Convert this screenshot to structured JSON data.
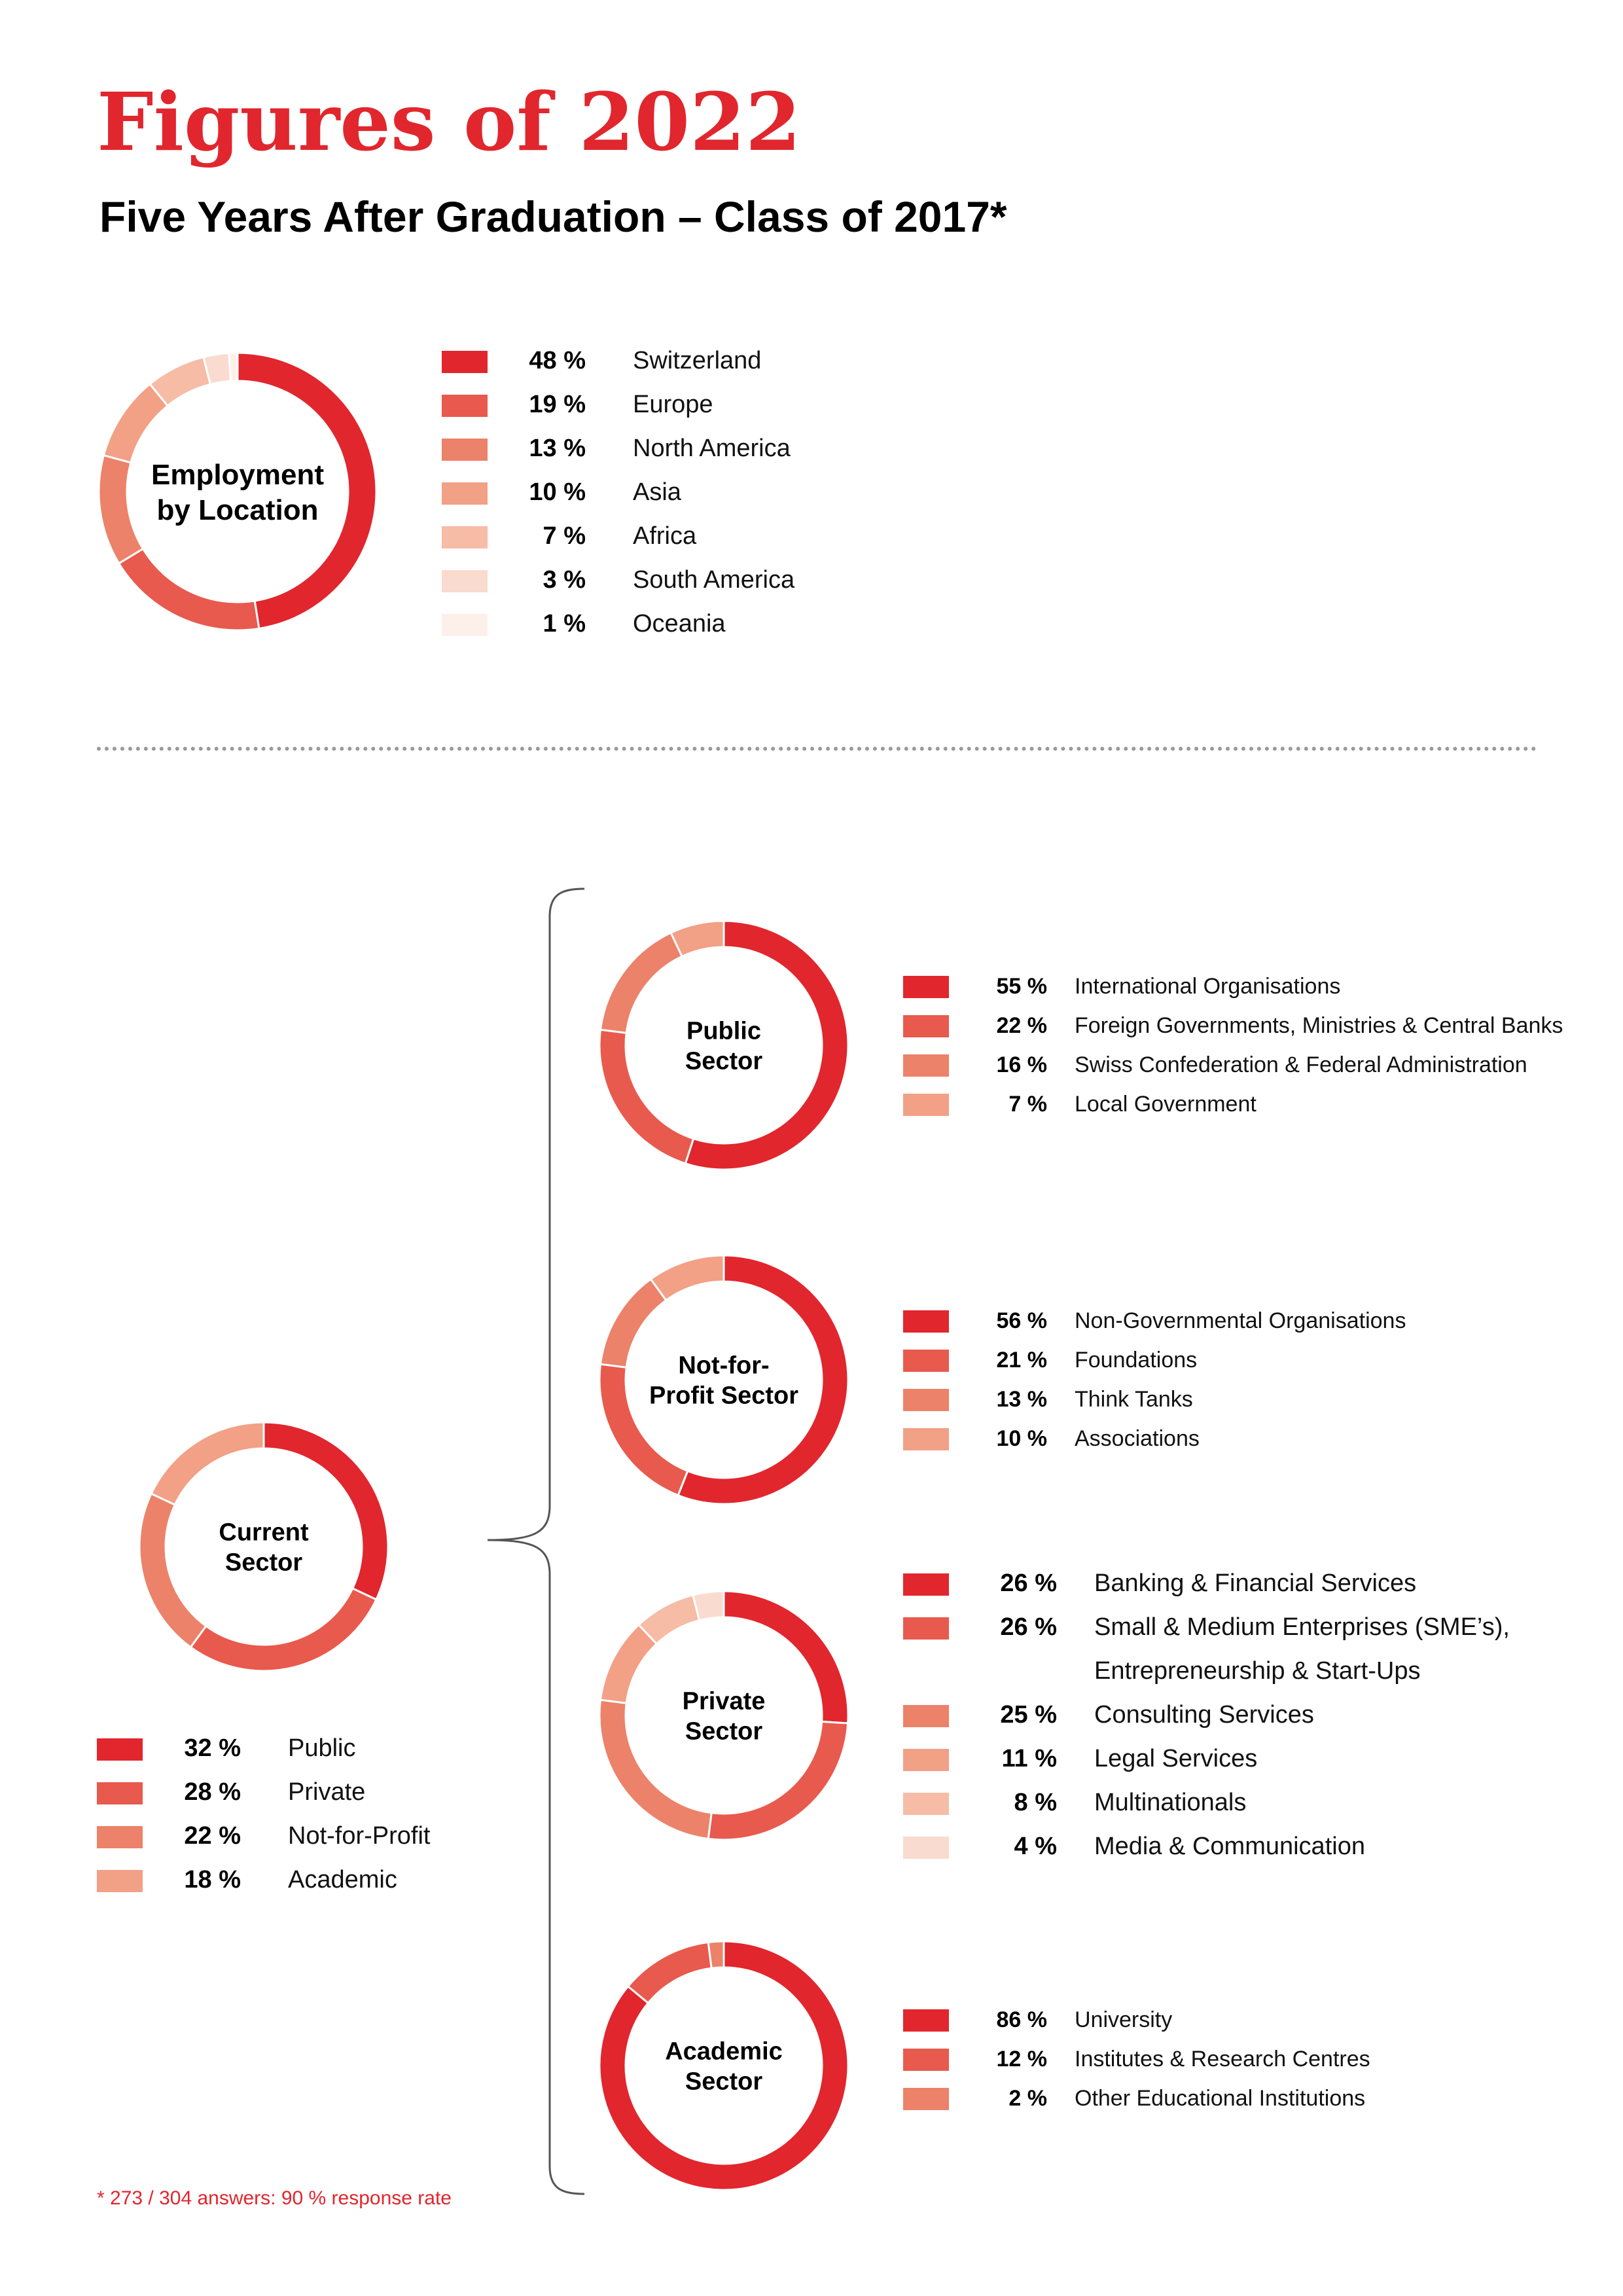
{
  "header": {
    "title": "Figures of 2022",
    "subtitle": "Five Years After Graduation – Class of 2017*"
  },
  "colors": {
    "accent": "#e1262d",
    "palette": [
      "#e1262d",
      "#e85a4d",
      "#ec8269",
      "#f2a086",
      "#f6bca6",
      "#fadbcf",
      "#fdf0eb"
    ]
  },
  "footnote": "* 273 / 304 answers: 90 % response rate",
  "chart_data": [
    {
      "id": "location",
      "type": "pie",
      "title": "Employment by Location",
      "center_lines": [
        "Employment",
        "by Location"
      ],
      "categories": [
        "Switzerland",
        "Europe",
        "North America",
        "Asia",
        "Africa",
        "South America",
        "Oceania"
      ],
      "values": [
        48,
        19,
        13,
        10,
        7,
        3,
        1
      ],
      "labels": [
        "48 %",
        "19 %",
        "13 %",
        "10 %",
        "7 %",
        "3 %",
        "1 %"
      ]
    },
    {
      "id": "current",
      "type": "pie",
      "title": "Current Sector",
      "center_lines": [
        "Current",
        "Sector"
      ],
      "categories": [
        "Public",
        "Private",
        "Not-for-Profit",
        "Academic"
      ],
      "values": [
        32,
        28,
        22,
        18
      ],
      "labels": [
        "32 %",
        "28 %",
        "22 %",
        "18 %"
      ]
    },
    {
      "id": "public",
      "type": "pie",
      "title": "Public Sector",
      "center_lines": [
        "Public",
        "Sector"
      ],
      "categories": [
        "International Organisations",
        "Foreign Governments, Ministries & Central Banks",
        "Swiss Confederation & Federal Administration",
        "Local Government"
      ],
      "values": [
        55,
        22,
        16,
        7
      ],
      "labels": [
        "55 %",
        "22 %",
        "16 %",
        "7 %"
      ]
    },
    {
      "id": "nonprofit",
      "type": "pie",
      "title": "Not-for-Profit Sector",
      "center_lines": [
        "Not-for-",
        "Profit Sector"
      ],
      "categories": [
        "Non-Governmental Organisations",
        "Foundations",
        "Think Tanks",
        "Associations"
      ],
      "values": [
        56,
        21,
        13,
        10
      ],
      "labels": [
        "56 %",
        "21 %",
        "13 %",
        "10 %"
      ]
    },
    {
      "id": "private",
      "type": "pie",
      "title": "Private Sector",
      "center_lines": [
        "Private",
        "Sector"
      ],
      "categories": [
        "Banking & Financial Services",
        "Small & Medium Enterprises (SME’s), Entrepreneurship & Start-Ups",
        "Consulting Services",
        "Legal Services",
        "Multinationals",
        "Media & Communication"
      ],
      "legend_name_lines": [
        [
          "Banking & Financial Services"
        ],
        [
          "Small & Medium Enterprises (SME’s),",
          "Entrepreneurship & Start-Ups"
        ],
        [
          "Consulting Services"
        ],
        [
          "Legal Services"
        ],
        [
          "Multinationals"
        ],
        [
          "Media & Communication"
        ]
      ],
      "values": [
        26,
        26,
        25,
        11,
        8,
        4
      ],
      "labels": [
        "26 %",
        "26 %",
        "25 %",
        "11 %",
        "8 %",
        "4 %"
      ]
    },
    {
      "id": "academic",
      "type": "pie",
      "title": "Academic Sector",
      "center_lines": [
        "Academic",
        "Sector"
      ],
      "categories": [
        "University",
        "Institutes & Research Centres",
        "Other Educational Institutions"
      ],
      "values": [
        86,
        12,
        2
      ],
      "labels": [
        "86 %",
        "12 %",
        "2 %"
      ]
    }
  ]
}
